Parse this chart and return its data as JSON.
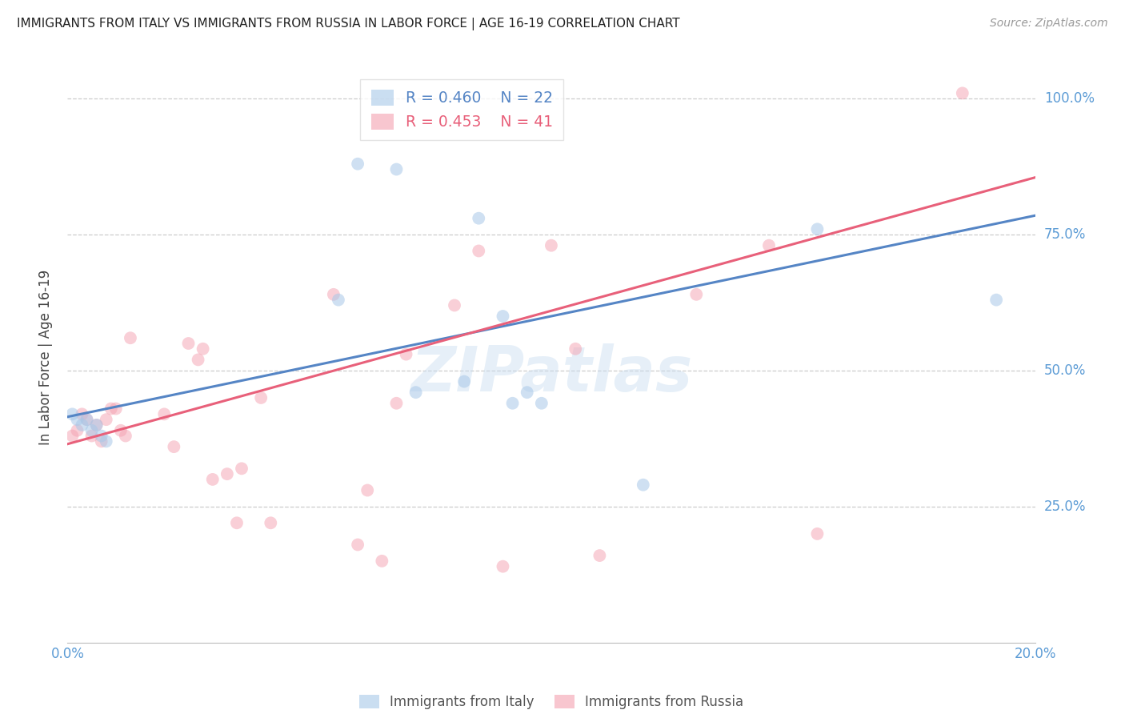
{
  "title": "IMMIGRANTS FROM ITALY VS IMMIGRANTS FROM RUSSIA IN LABOR FORCE | AGE 16-19 CORRELATION CHART",
  "source": "Source: ZipAtlas.com",
  "ylabel": "In Labor Force | Age 16-19",
  "xlim": [
    0.0,
    0.2
  ],
  "ylim": [
    0.0,
    1.05
  ],
  "xticks": [
    0.0,
    0.04,
    0.08,
    0.12,
    0.16,
    0.2
  ],
  "xticklabels": [
    "0.0%",
    "",
    "",
    "",
    "",
    "20.0%"
  ],
  "yticks": [
    0.25,
    0.5,
    0.75,
    1.0
  ],
  "yticklabels": [
    "25.0%",
    "50.0%",
    "75.0%",
    "100.0%"
  ],
  "italy_color": "#a8c8e8",
  "russia_color": "#f4a0b0",
  "italy_line_color": "#5585c5",
  "russia_line_color": "#e8607a",
  "italy_R": 0.46,
  "italy_N": 22,
  "russia_R": 0.453,
  "russia_N": 41,
  "legend_italy_label": "Immigrants from Italy",
  "legend_russia_label": "Immigrants from Russia",
  "watermark": "ZIPatlas",
  "background_color": "#ffffff",
  "grid_color": "#cccccc",
  "title_color": "#222222",
  "axis_label_color": "#5b9bd5",
  "italy_points_x": [
    0.001,
    0.002,
    0.003,
    0.004,
    0.005,
    0.006,
    0.007,
    0.008,
    0.056,
    0.06,
    0.068,
    0.072,
    0.082,
    0.085,
    0.09,
    0.092,
    0.095,
    0.098,
    0.119,
    0.155,
    0.192
  ],
  "italy_points_y": [
    0.42,
    0.41,
    0.4,
    0.41,
    0.39,
    0.4,
    0.38,
    0.37,
    0.63,
    0.88,
    0.87,
    0.46,
    0.48,
    0.78,
    0.6,
    0.44,
    0.46,
    0.44,
    0.29,
    0.76,
    0.63
  ],
  "russia_points_x": [
    0.001,
    0.002,
    0.003,
    0.004,
    0.005,
    0.006,
    0.007,
    0.008,
    0.009,
    0.01,
    0.011,
    0.012,
    0.013,
    0.02,
    0.022,
    0.025,
    0.027,
    0.028,
    0.03,
    0.033,
    0.035,
    0.036,
    0.04,
    0.042,
    0.055,
    0.06,
    0.062,
    0.065,
    0.068,
    0.07,
    0.08,
    0.085,
    0.09,
    0.1,
    0.105,
    0.11,
    0.13,
    0.145,
    0.155,
    0.185
  ],
  "russia_points_y": [
    0.38,
    0.39,
    0.42,
    0.41,
    0.38,
    0.4,
    0.37,
    0.41,
    0.43,
    0.43,
    0.39,
    0.38,
    0.56,
    0.42,
    0.36,
    0.55,
    0.52,
    0.54,
    0.3,
    0.31,
    0.22,
    0.32,
    0.45,
    0.22,
    0.64,
    0.18,
    0.28,
    0.15,
    0.44,
    0.53,
    0.62,
    0.72,
    0.14,
    0.73,
    0.54,
    0.16,
    0.64,
    0.73,
    0.2,
    1.01
  ],
  "marker_size": 130,
  "italy_line_x0": 0.0,
  "italy_line_y0": 0.415,
  "italy_line_x1": 0.2,
  "italy_line_y1": 0.785,
  "russia_line_x0": 0.0,
  "russia_line_y0": 0.365,
  "russia_line_x1": 0.2,
  "russia_line_y1": 0.855
}
